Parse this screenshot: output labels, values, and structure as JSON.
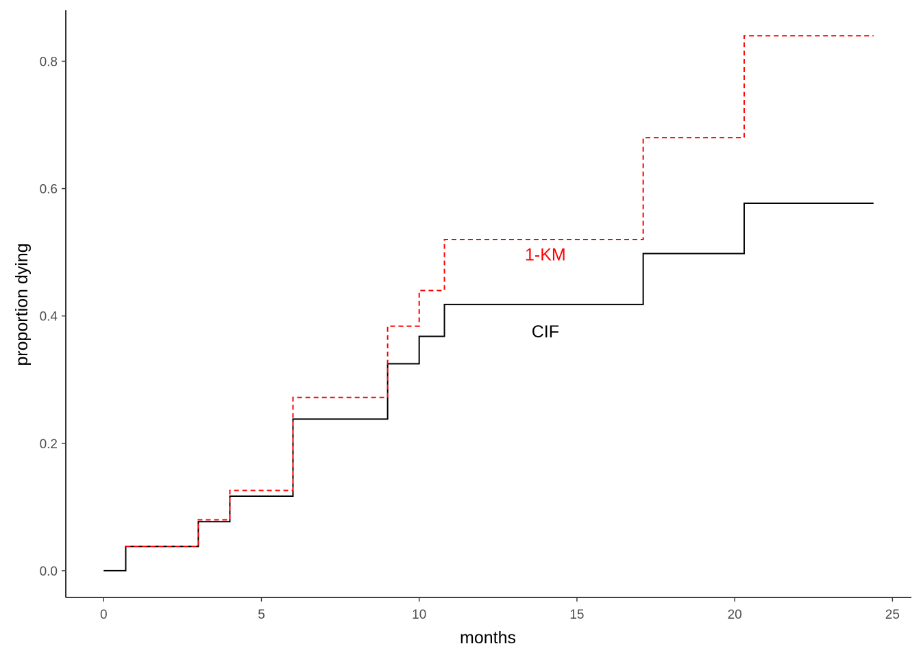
{
  "chart_data": {
    "type": "line",
    "step": true,
    "xlabel": "months",
    "ylabel": "proportion dying",
    "xlim": [
      -1.2,
      25.6
    ],
    "ylim": [
      -0.042,
      0.88
    ],
    "x_ticks": [
      0,
      5,
      10,
      15,
      20,
      25
    ],
    "x_tick_labels": [
      "0",
      "5",
      "10",
      "15",
      "20",
      "25"
    ],
    "y_ticks": [
      0.0,
      0.2,
      0.4,
      0.6,
      0.8
    ],
    "y_tick_labels": [
      "0.0",
      "0.2",
      "0.4",
      "0.6",
      "0.8"
    ],
    "grid": false,
    "legend": "none",
    "series": [
      {
        "color": "#000000",
        "dash": "solid",
        "x": [
          0,
          0.7,
          3.0,
          4.0,
          6.0,
          9.0,
          10.0,
          10.8,
          17.1,
          20.3,
          24.4
        ],
        "y": [
          0.0,
          0.038,
          0.077,
          0.117,
          0.238,
          0.325,
          0.368,
          0.418,
          0.498,
          0.577,
          0.577
        ]
      },
      {
        "color": "#ff0000",
        "dash": "dashed",
        "x": [
          0.7,
          3.0,
          4.0,
          6.0,
          9.0,
          10.0,
          10.8,
          17.1,
          20.3,
          24.4
        ],
        "y": [
          0.038,
          0.08,
          0.126,
          0.272,
          0.384,
          0.44,
          0.52,
          0.68,
          0.84,
          0.84
        ]
      }
    ],
    "annotations": [
      {
        "text": "1-KM",
        "x": 14.0,
        "y": 0.497,
        "color": "#ff0000"
      },
      {
        "text": "CIF",
        "x": 14.0,
        "y": 0.376,
        "color": "#000000"
      }
    ]
  }
}
